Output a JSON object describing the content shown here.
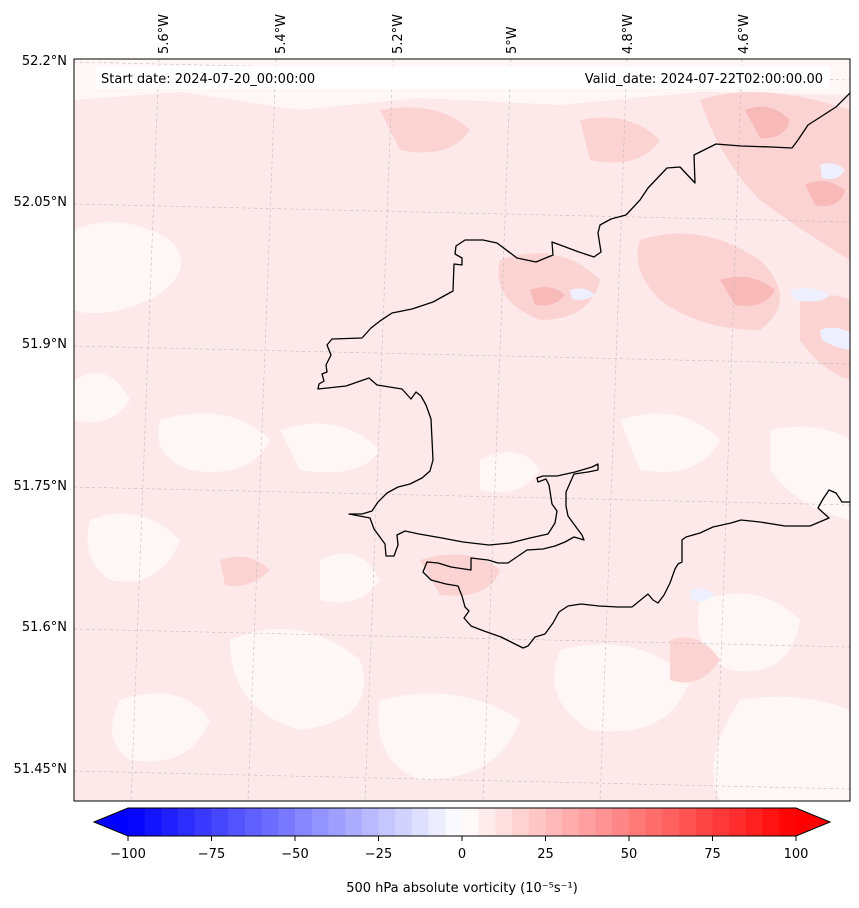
{
  "map": {
    "start_date": "Start date: 2024-07-20_00:00:00",
    "valid_date": "Valid_date: 2024-07-22T02:00:00.00",
    "lon_labels": [
      "5.6°W",
      "5.4°W",
      "5.2°W",
      "5°W",
      "4.8°W",
      "4.6°W"
    ],
    "lat_labels": [
      "52.2°N",
      "52.05°N",
      "51.9°N",
      "51.75°N",
      "51.6°N",
      "51.45°N"
    ],
    "field_colors": {
      "background": "#fde9e9",
      "light_patch": "#fff6f6",
      "medium_patch": "#fbd3d3",
      "strong_patch": "#f8b9b9",
      "blue_patch": "#eef0ff",
      "coastline": "#000000"
    }
  },
  "colorbar": {
    "label": "500 hPa absolute vorticity (10⁻⁵s⁻¹)",
    "ticks": [
      "−100",
      "−75",
      "−50",
      "−25",
      "0",
      "25",
      "50",
      "75",
      "100"
    ],
    "vmin": -100,
    "vmax": 100,
    "colors": [
      "#0000ff",
      "#ffffff",
      "#ff0000"
    ]
  }
}
